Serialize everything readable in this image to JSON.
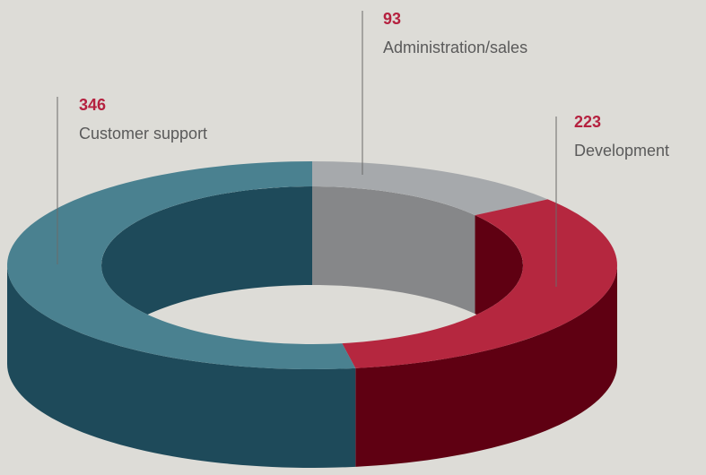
{
  "chart_data": {
    "type": "pie",
    "categories": [
      "Administration/sales",
      "Development",
      "Customer support"
    ],
    "values": [
      93,
      223,
      346
    ],
    "colors": [
      "#a6a9ac",
      "#b5273f",
      "#4a8190"
    ],
    "side_colors": [
      "#868789",
      "#5f0012",
      "#1e4a5a"
    ]
  }
}
